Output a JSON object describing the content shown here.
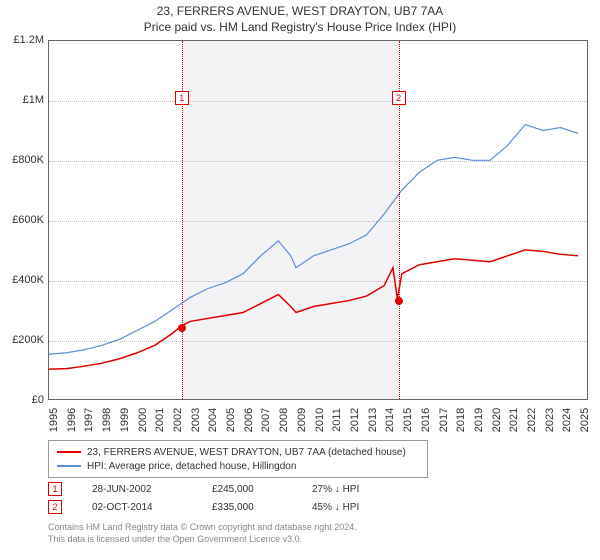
{
  "title_main": "23, FERRERS AVENUE, WEST DRAYTON, UB7 7AA",
  "title_sub": "Price paid vs. HM Land Registry's House Price Index (HPI)",
  "chart": {
    "type": "line",
    "background_color": "#ffffff",
    "border_color": "#666666",
    "grid_color": "#bbbbbb",
    "shade_color": "rgba(235,235,240,0.6)",
    "x_years": [
      1995,
      1996,
      1997,
      1998,
      1999,
      2000,
      2001,
      2002,
      2003,
      2004,
      2005,
      2006,
      2007,
      2008,
      2009,
      2010,
      2011,
      2012,
      2013,
      2014,
      2015,
      2016,
      2017,
      2018,
      2019,
      2020,
      2021,
      2022,
      2023,
      2024,
      2025
    ],
    "ylim": [
      0,
      1200000
    ],
    "ytick_step": 200000,
    "yticks": [
      {
        "v": 0,
        "label": "£0"
      },
      {
        "v": 200000,
        "label": "£200K"
      },
      {
        "v": 400000,
        "label": "£400K"
      },
      {
        "v": 600000,
        "label": "£600K"
      },
      {
        "v": 800000,
        "label": "£800K"
      },
      {
        "v": 1000000,
        "label": "£1M"
      },
      {
        "v": 1200000,
        "label": "£1.2M"
      }
    ],
    "x_range": [
      1995,
      2025.5
    ],
    "series": [
      {
        "name": "property",
        "label": "23, FERRERS AVENUE, WEST DRAYTON, UB7 7AA (detached house)",
        "color": "#e00000",
        "line_width": 1.5,
        "points": [
          [
            1995,
            100000
          ],
          [
            1996,
            102000
          ],
          [
            1997,
            110000
          ],
          [
            1998,
            120000
          ],
          [
            1999,
            135000
          ],
          [
            2000,
            155000
          ],
          [
            2001,
            180000
          ],
          [
            2002,
            220000
          ],
          [
            2002.5,
            245000
          ],
          [
            2003,
            260000
          ],
          [
            2004,
            270000
          ],
          [
            2005,
            280000
          ],
          [
            2006,
            290000
          ],
          [
            2007,
            320000
          ],
          [
            2008,
            350000
          ],
          [
            2008.7,
            310000
          ],
          [
            2009,
            290000
          ],
          [
            2010,
            310000
          ],
          [
            2011,
            320000
          ],
          [
            2012,
            330000
          ],
          [
            2013,
            345000
          ],
          [
            2014,
            380000
          ],
          [
            2014.5,
            440000
          ],
          [
            2014.75,
            335000
          ],
          [
            2015,
            420000
          ],
          [
            2016,
            450000
          ],
          [
            2017,
            460000
          ],
          [
            2018,
            470000
          ],
          [
            2019,
            465000
          ],
          [
            2020,
            460000
          ],
          [
            2021,
            480000
          ],
          [
            2022,
            500000
          ],
          [
            2023,
            495000
          ],
          [
            2024,
            485000
          ],
          [
            2025,
            480000
          ]
        ]
      },
      {
        "name": "hpi",
        "label": "HPI: Average price, detached house, Hillingdon",
        "color": "#5b8fd6",
        "line_width": 1.2,
        "points": [
          [
            1995,
            150000
          ],
          [
            1996,
            155000
          ],
          [
            1997,
            165000
          ],
          [
            1998,
            180000
          ],
          [
            1999,
            200000
          ],
          [
            2000,
            230000
          ],
          [
            2001,
            260000
          ],
          [
            2002,
            300000
          ],
          [
            2003,
            340000
          ],
          [
            2004,
            370000
          ],
          [
            2005,
            390000
          ],
          [
            2006,
            420000
          ],
          [
            2007,
            480000
          ],
          [
            2008,
            530000
          ],
          [
            2008.7,
            480000
          ],
          [
            2009,
            440000
          ],
          [
            2010,
            480000
          ],
          [
            2011,
            500000
          ],
          [
            2012,
            520000
          ],
          [
            2013,
            550000
          ],
          [
            2014,
            620000
          ],
          [
            2015,
            700000
          ],
          [
            2016,
            760000
          ],
          [
            2017,
            800000
          ],
          [
            2018,
            810000
          ],
          [
            2019,
            800000
          ],
          [
            2020,
            800000
          ],
          [
            2021,
            850000
          ],
          [
            2022,
            920000
          ],
          [
            2023,
            900000
          ],
          [
            2024,
            910000
          ],
          [
            2025,
            890000
          ]
        ]
      }
    ],
    "shaded_ranges": [
      {
        "from": 2002.5,
        "to": 2014.75
      }
    ],
    "transactions": [
      {
        "n": "1",
        "x": 2002.5,
        "price": 245000,
        "date": "28-JUN-2002",
        "price_str": "£245,000",
        "delta": "27% ↓ HPI"
      },
      {
        "n": "2",
        "x": 2014.75,
        "price": 335000,
        "date": "02-OCT-2014",
        "price_str": "£335,000",
        "delta": "45% ↓ HPI"
      }
    ],
    "label_fontsize": 11,
    "title_fontsize": 12
  },
  "footer": {
    "line1": "Contains HM Land Registry data © Crown copyright and database right 2024.",
    "line2": "This data is licensed under the Open Government Licence v3.0."
  }
}
